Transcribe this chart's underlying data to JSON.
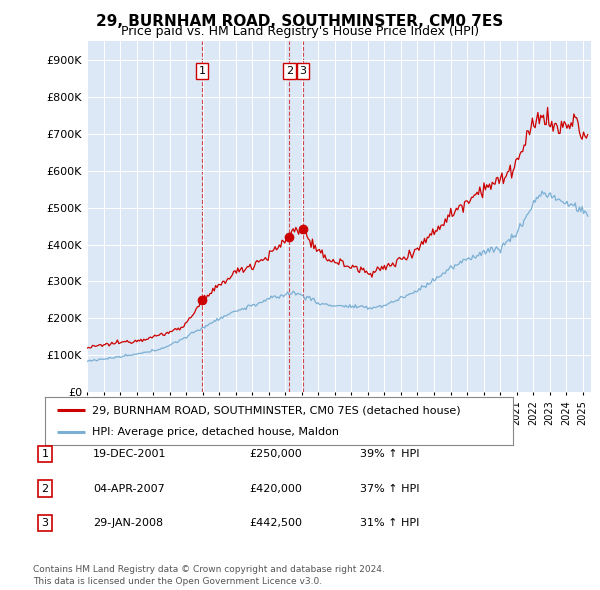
{
  "title": "29, BURNHAM ROAD, SOUTHMINSTER, CM0 7ES",
  "subtitle": "Price paid vs. HM Land Registry's House Price Index (HPI)",
  "ylabel_ticks": [
    "£0",
    "£100K",
    "£200K",
    "£300K",
    "£400K",
    "£500K",
    "£600K",
    "£700K",
    "£800K",
    "£900K"
  ],
  "ytick_values": [
    0,
    100000,
    200000,
    300000,
    400000,
    500000,
    600000,
    700000,
    800000,
    900000
  ],
  "ylim": [
    0,
    950000
  ],
  "xlim_start": 1995.0,
  "xlim_end": 2025.5,
  "red_line_color": "#cc0000",
  "blue_line_color": "#7bafd4",
  "dashed_red_color": "#cc0000",
  "sale_points": [
    {
      "year": 2001.97,
      "price": 250000,
      "label": "1"
    },
    {
      "year": 2007.25,
      "price": 420000,
      "label": "2"
    },
    {
      "year": 2008.08,
      "price": 442500,
      "label": "3"
    }
  ],
  "legend_entries": [
    {
      "color": "#cc0000",
      "label": "29, BURNHAM ROAD, SOUTHMINSTER, CM0 7ES (detached house)"
    },
    {
      "color": "#7bafd4",
      "label": "HPI: Average price, detached house, Maldon"
    }
  ],
  "table_rows": [
    {
      "num": "1",
      "date": "19-DEC-2001",
      "price": "£250,000",
      "change": "39% ↑ HPI"
    },
    {
      "num": "2",
      "date": "04-APR-2007",
      "price": "£420,000",
      "change": "37% ↑ HPI"
    },
    {
      "num": "3",
      "date": "29-JAN-2008",
      "price": "£442,500",
      "change": "31% ↑ HPI"
    }
  ],
  "footnote1": "Contains HM Land Registry data © Crown copyright and database right 2024.",
  "footnote2": "This data is licensed under the Open Government Licence v3.0.",
  "background_color": "#ffffff",
  "plot_bg_color": "#dce8f5"
}
